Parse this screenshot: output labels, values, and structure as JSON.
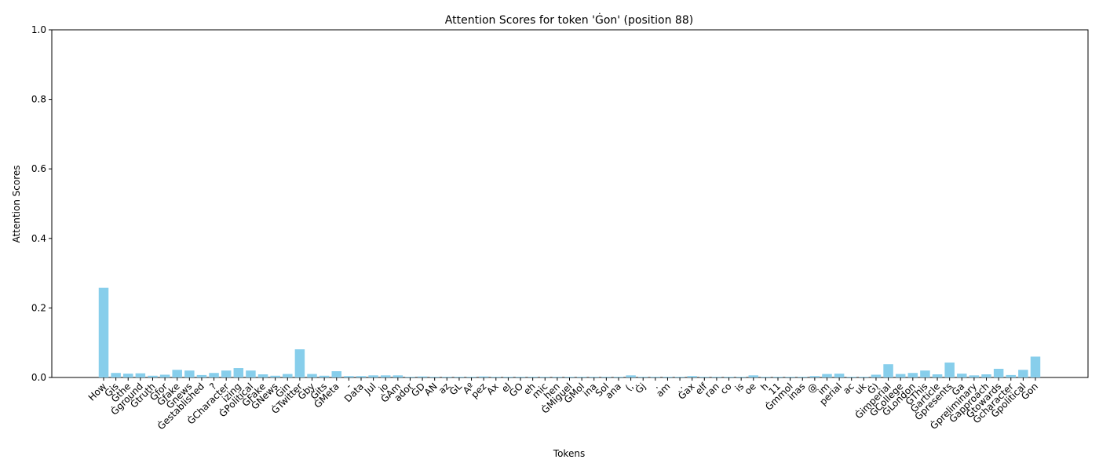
{
  "chart_data": {
    "type": "bar",
    "title": "Attention Scores for token 'Ġon' (position 88)",
    "x_label": "Tokens",
    "y_label": "Attention Scores",
    "categories": [
      "How",
      "Ġis",
      "Ġthe",
      "Ġground",
      "Ġtruth",
      "Ġfor",
      "Ġfake",
      "Ġnews",
      "Ġestablished",
      "?",
      "ĠCharacter",
      "izing",
      "ĠPolitical",
      "ĠFake",
      "ĠNews",
      "Ġin",
      "ĠTwitter",
      "Ġby",
      "Ġits",
      "ĠMeta",
      "-",
      "Data",
      "Jul",
      "io",
      "ĠAm",
      "ador",
      "ĠD",
      "AN",
      "az",
      "ĠL",
      "Aº",
      "pez",
      "Ax",
      "el",
      "ĠO",
      "eh",
      "mic",
      "hen",
      "ĠMiguel",
      "ĠMol",
      "ina",
      "Sol",
      "ana",
      "(,",
      "Ġj",
      ".",
      "am",
      ".",
      "Ġax",
      "elf",
      "ran",
      "co",
      "is",
      "oe",
      "h",
      "11",
      "Ġmmol",
      "inas",
      "@",
      "im",
      "perial",
      "ac",
      "uk",
      "Ġ)",
      "Ġimperial",
      "ĠCollege",
      "ĠLondon",
      "ĠThis",
      "Ġarticle",
      "Ġpresents",
      "Ġa",
      "Ġpreliminary",
      "Ġapproach",
      "Ġtowards",
      "Ġcharacter",
      "Ġpolitical",
      "Ġon"
    ],
    "values": [
      0.258,
      0.013,
      0.011,
      0.012,
      0.005,
      0.008,
      0.022,
      0.02,
      0.007,
      0.013,
      0.02,
      0.027,
      0.02,
      0.009,
      0.005,
      0.01,
      0.081,
      0.01,
      0.005,
      0.018,
      0.004,
      0.004,
      0.006,
      0.006,
      0.006,
      0.002,
      0.003,
      0.002,
      0.002,
      0.002,
      0.002,
      0.003,
      0.002,
      0.002,
      0.002,
      0.002,
      0.002,
      0.002,
      0.002,
      0.002,
      0.002,
      0.002,
      0.002,
      0.006,
      0.002,
      0.002,
      0.002,
      0.002,
      0.004,
      0.002,
      0.002,
      0.002,
      0.002,
      0.006,
      0.002,
      0.002,
      0.002,
      0.002,
      0.004,
      0.01,
      0.011,
      0.002,
      0.002,
      0.008,
      0.038,
      0.01,
      0.013,
      0.02,
      0.009,
      0.043,
      0.011,
      0.006,
      0.009,
      0.025,
      0.007,
      0.022,
      0.06
    ],
    "color": "#87ceeb",
    "ylim": [
      0,
      1
    ],
    "yticks": [
      {
        "value": 0,
        "label": "0.0"
      },
      {
        "value": 0.2,
        "label": "0.2"
      },
      {
        "value": 0.4,
        "label": "0.4"
      },
      {
        "value": 0.6,
        "label": "0.6"
      },
      {
        "value": 0.8,
        "label": "0.8"
      },
      {
        "value": 1,
        "label": "1.0"
      }
    ],
    "grid": false
  }
}
